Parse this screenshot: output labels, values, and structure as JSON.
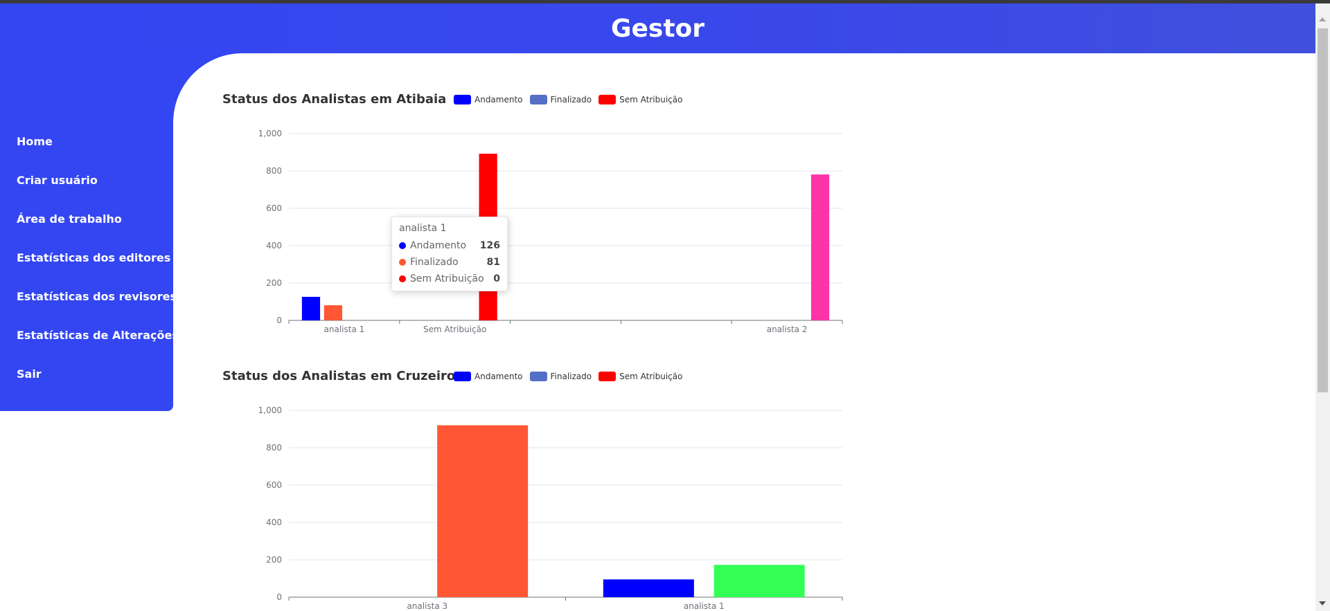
{
  "header": {
    "title": "Gestor"
  },
  "sidebar": {
    "items": [
      {
        "label": "Home"
      },
      {
        "label": "Criar usuário"
      },
      {
        "label": "Área de trabalho"
      },
      {
        "label": "Estatísticas dos editores"
      },
      {
        "label": "Estatísticas dos revisores"
      },
      {
        "label": "Estatísticas de Alterações"
      },
      {
        "label": "Sair"
      }
    ]
  },
  "legend": {
    "items": [
      {
        "label": "Andamento",
        "color": "#0000ff"
      },
      {
        "label": "Finalizado",
        "color": "#5470c6"
      },
      {
        "label": "Sem Atribuição",
        "color": "#ff0000"
      }
    ]
  },
  "tooltip": {
    "title": "analista 1",
    "rows": [
      {
        "label": "Andamento",
        "value": "126",
        "color": "#0000ff"
      },
      {
        "label": "Finalizado",
        "value": "81",
        "color": "#ff5733"
      },
      {
        "label": "Sem Atribuição",
        "value": "0",
        "color": "#ff0000"
      }
    ]
  },
  "chart_data": [
    {
      "type": "bar",
      "title": "Status dos Analistas em Atibaia",
      "ylim": [
        0,
        1000
      ],
      "yticks": [
        "0",
        "200",
        "400",
        "600",
        "800",
        "1,000"
      ],
      "categories": [
        "analista 1",
        "Sem Atribuição",
        "",
        "",
        "analista 2"
      ],
      "bars": [
        {
          "category": "analista 1",
          "slot": 0,
          "value": 126,
          "color": "#0000ff"
        },
        {
          "category": "analista 1",
          "slot": 1,
          "value": 81,
          "color": "#ff5733"
        },
        {
          "category": "Sem Atribuição",
          "slot": 3,
          "value": 892,
          "color": "#ff0000"
        },
        {
          "category": "analista 2",
          "slot": 3,
          "value": 781,
          "color": "#ff33a8"
        }
      ],
      "grid": true,
      "legend_position": "top"
    },
    {
      "type": "bar",
      "title": "Status dos Analistas em Cruzeiro",
      "ylim": [
        0,
        1000
      ],
      "yticks": [
        "0",
        "200",
        "400",
        "600",
        "800",
        "1,000"
      ],
      "categories": [
        "analista 3",
        "analista 1"
      ],
      "bars": [
        {
          "category": "analista 3",
          "slot": 1,
          "value": 920,
          "color": "#ff5733"
        },
        {
          "category": "analista 1",
          "slot": 0,
          "value": 95,
          "color": "#0000ff"
        },
        {
          "category": "analista 1",
          "slot": 1,
          "value": 173,
          "color": "#33ff57"
        }
      ],
      "grid": true,
      "legend_position": "top"
    }
  ]
}
